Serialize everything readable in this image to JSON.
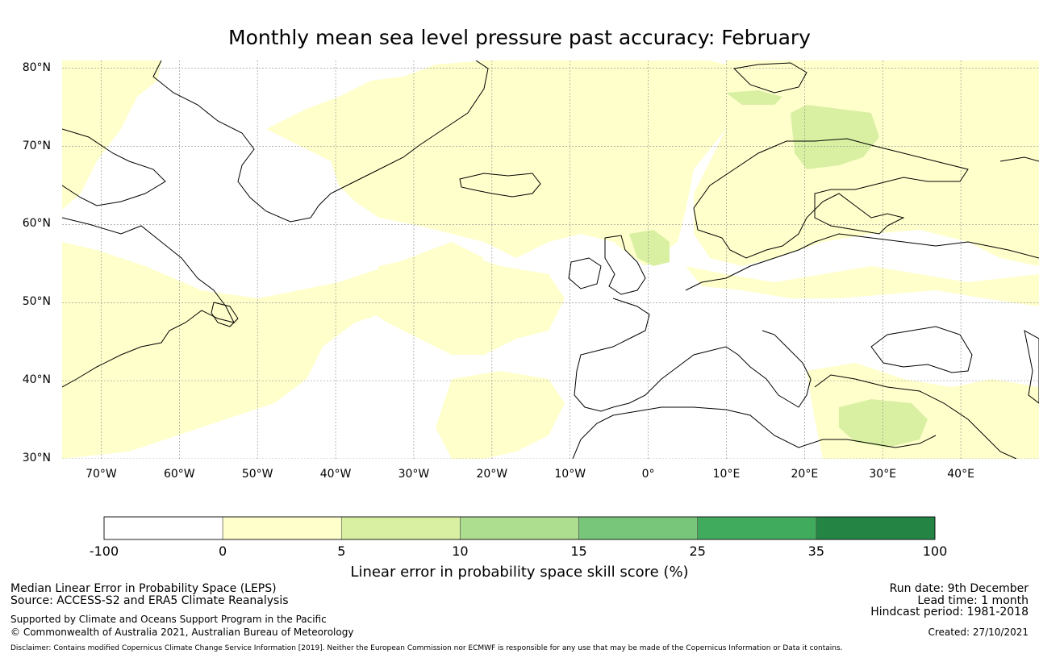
{
  "title": "Monthly mean sea level pressure past accuracy: February",
  "map": {
    "lat_labels": [
      "80°N",
      "70°N",
      "60°N",
      "50°N",
      "40°N",
      "30°N"
    ],
    "lon_labels": [
      "70°W",
      "60°W",
      "50°W",
      "40°W",
      "30°W",
      "20°W",
      "10°W",
      "0°",
      "10°E",
      "20°E",
      "30°E",
      "40°E"
    ],
    "extent": {
      "lon": [
        -75,
        50
      ],
      "lat": [
        30,
        81
      ]
    },
    "gridlines": true,
    "land_outline_color": "#000000",
    "skill_band_colors_present": [
      "#ffffff",
      "#ffffcc",
      "#d9f0a3"
    ]
  },
  "colorbar": {
    "title": "Linear error in probability space skill score (%)",
    "ticks": [
      "-100",
      "0",
      "5",
      "10",
      "15",
      "25",
      "35",
      "100"
    ],
    "colors": [
      "#ffffff",
      "#ffffcc",
      "#d9f0a3",
      "#addd8e",
      "#78c679",
      "#41ab5d",
      "#238443"
    ]
  },
  "footer": {
    "left": {
      "line1": "Median Linear Error in Probability Space (LEPS)",
      "line2": "Source: ACCESS-S2 and ERA5 Climate Reanalysis",
      "line3": "Supported by Climate and Oceans Support Program in the Pacific",
      "line4": "© Commonwealth of Australia 2021, Australian Bureau of Meteorology"
    },
    "right": {
      "run_date": "Run date: 9th December",
      "lead_time": "Lead time: 1 month",
      "hindcast": "Hindcast period: 1981-2018",
      "created": "Created: 27/10/2021"
    },
    "disclaimer": "Disclaimer: Contains modified Copernicus Climate Change Service Information [2019]. Neither the European Commission nor ECMWF is responsible for any use that may be made of the Copernicus Information or Data it contains."
  }
}
